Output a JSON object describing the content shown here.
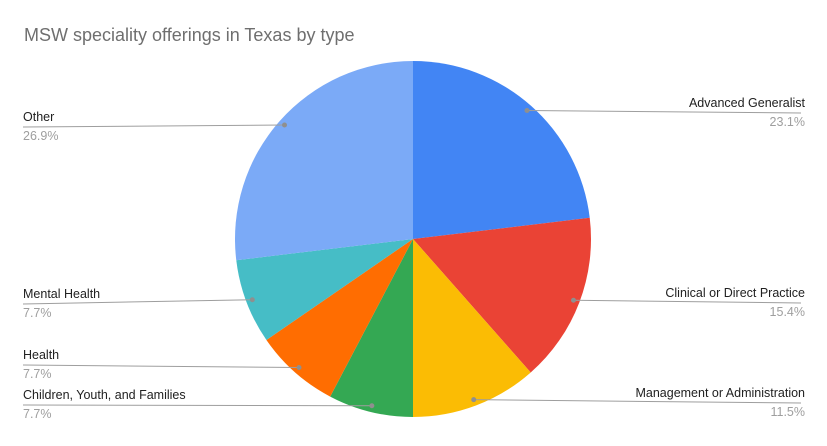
{
  "title": "MSW speciality offerings in Texas by type",
  "chart_data": {
    "type": "pie",
    "title": "MSW speciality offerings in Texas by type",
    "start_angle_deg": 0,
    "direction": "clockwise",
    "total": 100,
    "labels_style": "callout",
    "legend_position": "none",
    "slices": [
      {
        "label": "Advanced Generalist",
        "value": 23.1,
        "pct_label": "23.1%",
        "color": "#4285F4",
        "side": "right"
      },
      {
        "label": "Clinical or Direct Practice",
        "value": 15.4,
        "pct_label": "15.4%",
        "color": "#EA4335",
        "side": "right"
      },
      {
        "label": "Management or Administration",
        "value": 11.5,
        "pct_label": "11.5%",
        "color": "#FBBC04",
        "side": "right"
      },
      {
        "label": "Children, Youth, and Families",
        "value": 7.7,
        "pct_label": "7.7%",
        "color": "#34A853",
        "side": "left"
      },
      {
        "label": "Health",
        "value": 7.7,
        "pct_label": "7.7%",
        "color": "#FF6D01",
        "side": "left"
      },
      {
        "label": "Mental Health",
        "value": 7.7,
        "pct_label": "7.7%",
        "color": "#46BDC6",
        "side": "left"
      },
      {
        "label": "Other",
        "value": 26.9,
        "pct_label": "26.9%",
        "color": "#7BAAF7",
        "side": "left"
      }
    ],
    "colors": {
      "background": "#ffffff",
      "title_text": "#6f6f6f",
      "slice_label_text": "#212121",
      "percentage_text": "#9e9e9e",
      "leader_line": "#9e9e9e",
      "leader_dot": "#8f8f8f"
    }
  }
}
